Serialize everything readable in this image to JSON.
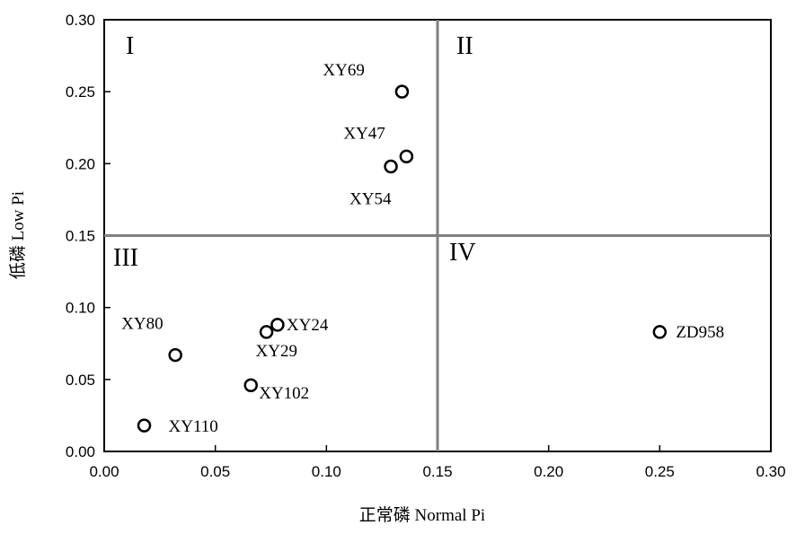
{
  "chart_data": {
    "type": "scatter",
    "title": "",
    "xlabel": "正常磷 Normal Pi",
    "ylabel": "低磷 Low Pi",
    "xlim": [
      0,
      0.3
    ],
    "ylim": [
      0,
      0.3
    ],
    "x_ticks": [
      "0.00",
      "0.05",
      "0.10",
      "0.15",
      "0.20",
      "0.25",
      "0.30"
    ],
    "y_ticks": [
      "0.00",
      "0.05",
      "0.10",
      "0.15",
      "0.20",
      "0.25",
      "0.30"
    ],
    "grid": false,
    "reference_lines": {
      "x": 0.15,
      "y": 0.15
    },
    "quadrant_labels": [
      "I",
      "II",
      "III",
      "IV"
    ],
    "points": [
      {
        "label": "XY69",
        "x": 0.134,
        "y": 0.25
      },
      {
        "label": "XY47",
        "x": 0.136,
        "y": 0.205
      },
      {
        "label": "XY54",
        "x": 0.129,
        "y": 0.198
      },
      {
        "label": "XY24",
        "x": 0.078,
        "y": 0.088
      },
      {
        "label": "XY29",
        "x": 0.073,
        "y": 0.083
      },
      {
        "label": "XY80",
        "x": 0.032,
        "y": 0.067
      },
      {
        "label": "XY102",
        "x": 0.066,
        "y": 0.046
      },
      {
        "label": "XY110",
        "x": 0.018,
        "y": 0.018
      },
      {
        "label": "ZD958",
        "x": 0.25,
        "y": 0.083
      }
    ]
  }
}
